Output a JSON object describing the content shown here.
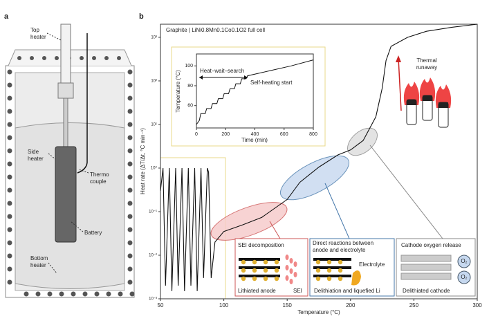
{
  "panel_a": {
    "label": "a",
    "top_heater": [
      "Top",
      "heater"
    ],
    "side_heater": [
      "Side",
      "heater"
    ],
    "thermo_couple": [
      "Thermo",
      "couple"
    ],
    "battery": "Battery",
    "bottom_heater": [
      "Bottom",
      "heater"
    ]
  },
  "chart_data": [
    {
      "type": "line",
      "panel_label": "b",
      "title": "Graphite | LiNi0.8Mn0.1Co0.1O2 full cell",
      "x_label": "Temperature (°C)",
      "y_label": "Heat rate (ΔT/Δt, °C min⁻¹)",
      "log_y": true,
      "color": "#111111",
      "xlim": [
        50,
        300
      ],
      "xticks": [
        50,
        100,
        150,
        200,
        250,
        300
      ],
      "ylim": [
        0.001,
        2000
      ],
      "yticks": [
        {
          "value": 0.001,
          "label": "10⁻³"
        },
        {
          "value": 0.01,
          "label": "10⁻²"
        },
        {
          "value": 0.1,
          "label": "10⁻¹"
        },
        {
          "value": 1,
          "label": "10⁰"
        },
        {
          "value": 10,
          "label": "10¹"
        },
        {
          "value": 100,
          "label": "10²"
        },
        {
          "value": 1000,
          "label": "10³"
        }
      ],
      "x": [
        50,
        52,
        54,
        57,
        59,
        62,
        64,
        67,
        69,
        72,
        74,
        77,
        79,
        82,
        84,
        87,
        88,
        90,
        93,
        100,
        115,
        130,
        150,
        160,
        175,
        190,
        200,
        210,
        220,
        225,
        228,
        232,
        245,
        260,
        280,
        300
      ],
      "values": [
        0.3,
        1.0,
        0.002,
        1.0,
        0.0015,
        1.0,
        0.002,
        1.0,
        0.0015,
        1.0,
        0.002,
        1.0,
        0.0015,
        1.0,
        0.003,
        1.0,
        0.8,
        0.003,
        0.02,
        0.035,
        0.05,
        0.074,
        0.19,
        0.47,
        1.05,
        2.0,
        2.6,
        4.3,
        15,
        68,
        293,
        620,
        1000,
        1380,
        1700,
        2000
      ],
      "annotations": {
        "thermal_runaway": [
          "Thermal",
          "runaway"
        ],
        "sei_title": "SEI decomposition",
        "lithiated_anode": "Lithiated anode",
        "sei": "SEI",
        "direct_title": [
          "Direct reactions between",
          "anode and electrolyte"
        ],
        "electrolyte": "Electrolyte",
        "delithiation": "Delithiation and liquefied Li",
        "cathode_title": "Cathode oxygen release",
        "delithiated_cathode": "Delithiated cathode",
        "o2": "O₂"
      }
    },
    {
      "type": "line",
      "x_label": "Time (min)",
      "y_label": "Temperature (°C)",
      "color": "#111111",
      "xlim": [
        0,
        800
      ],
      "xticks": [
        0,
        200,
        400,
        600,
        800
      ],
      "ylim": [
        37.5,
        112
      ],
      "yticks": [
        60,
        80,
        100
      ],
      "x": [
        0,
        20,
        30,
        60,
        70,
        100,
        110,
        140,
        150,
        180,
        190,
        220,
        230,
        260,
        270,
        300,
        310,
        340,
        350,
        500,
        650,
        800
      ],
      "values": [
        41,
        45,
        52,
        52,
        57,
        57,
        62,
        62,
        67,
        67,
        72,
        72,
        77,
        77,
        82,
        82,
        87,
        87,
        90,
        95,
        100,
        106
      ],
      "annotations": {
        "hws": "Heat–wait–search",
        "self_heating": "Self-heating start"
      }
    }
  ]
}
